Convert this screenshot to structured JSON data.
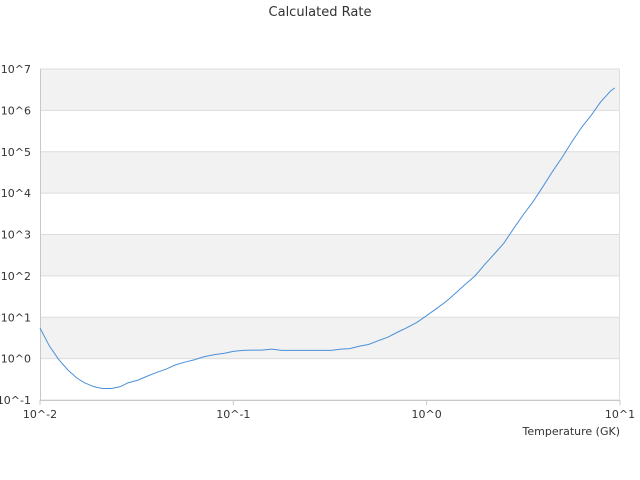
{
  "chart_data": {
    "type": "line",
    "title": "Calculated Rate",
    "xlabel": "Temperature (GK)",
    "ylabel": "",
    "x_scale": "log",
    "y_scale": "log",
    "xlim": [
      0.01,
      10
    ],
    "ylim": [
      0.1,
      10000000
    ],
    "x_tick_labels": [
      "10^-2",
      "10^-1",
      "10^0",
      "10^1"
    ],
    "y_tick_labels": [
      "10^-1",
      "10^0",
      "10^1",
      "10^2",
      "10^3",
      "10^4",
      "10^5",
      "10^6",
      "10^7"
    ],
    "grid": "alternating horizontal bands",
    "legend": "none",
    "series": [
      {
        "color": "#4a90d9",
        "x": [
          0.01,
          0.0112,
          0.0125,
          0.014,
          0.0155,
          0.017,
          0.019,
          0.021,
          0.0235,
          0.026,
          0.0285,
          0.032,
          0.036,
          0.04,
          0.045,
          0.05,
          0.056,
          0.063,
          0.07,
          0.08,
          0.09,
          0.1,
          0.112,
          0.125,
          0.14,
          0.158,
          0.178,
          0.2,
          0.224,
          0.25,
          0.28,
          0.32,
          0.36,
          0.4,
          0.45,
          0.5,
          0.56,
          0.63,
          0.71,
          0.79,
          0.89,
          1.0,
          1.12,
          1.26,
          1.41,
          1.58,
          1.78,
          2.0,
          2.24,
          2.51,
          2.82,
          3.16,
          3.55,
          3.98,
          4.47,
          5.01,
          5.62,
          6.31,
          7.08,
          7.94,
          8.91,
          9.4
        ],
        "y": [
          5.5,
          2.0,
          0.95,
          0.52,
          0.34,
          0.26,
          0.21,
          0.19,
          0.19,
          0.21,
          0.26,
          0.3,
          0.38,
          0.46,
          0.56,
          0.7,
          0.82,
          0.94,
          1.1,
          1.25,
          1.35,
          1.5,
          1.58,
          1.6,
          1.6,
          1.7,
          1.58,
          1.58,
          1.58,
          1.58,
          1.58,
          1.58,
          1.7,
          1.75,
          2.0,
          2.2,
          2.7,
          3.3,
          4.4,
          5.6,
          7.5,
          11,
          16,
          24,
          38,
          62,
          100,
          190,
          340,
          620,
          1400,
          3000,
          6200,
          14000,
          33000,
          72000,
          170000,
          380000,
          750000,
          1600000,
          2900000,
          3500000
        ]
      }
    ]
  }
}
